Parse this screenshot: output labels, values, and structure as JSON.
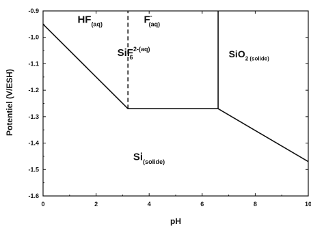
{
  "chart_data": {
    "type": "line",
    "xlabel": "pH",
    "ylabel": "Potentiel (V/ESH)",
    "xlim": [
      0,
      10
    ],
    "ylim": [
      -1.6,
      -0.9
    ],
    "x_ticks": [
      0,
      2,
      4,
      6,
      8,
      10
    ],
    "y_ticks": [
      -1.6,
      -1.5,
      -1.4,
      -1.3,
      -1.2,
      -1.1,
      -1.0,
      -0.9
    ],
    "x_tick_labels": [
      "0",
      "2",
      "4",
      "6",
      "8",
      "10"
    ],
    "y_tick_labels": [
      "-1.6",
      "-1.5",
      "-1.4",
      "-1.3",
      "-1.2",
      "-1.1",
      "-1.0",
      "-0.9"
    ],
    "boundaries": [
      {
        "style": "solid",
        "points": [
          [
            0,
            -0.95
          ],
          [
            3.2,
            -1.27
          ],
          [
            6.6,
            -1.27
          ],
          [
            10,
            -1.47
          ]
        ]
      },
      {
        "style": "solid",
        "points": [
          [
            6.6,
            -1.27
          ],
          [
            6.6,
            -0.9
          ]
        ]
      },
      {
        "style": "dashed",
        "points": [
          [
            3.2,
            -1.27
          ],
          [
            3.2,
            -0.9
          ]
        ]
      }
    ],
    "regions": [
      {
        "main": "HF",
        "sub": "(aq)",
        "sup": "",
        "x": 1.3,
        "y": -0.945,
        "size": 15
      },
      {
        "main": "F",
        "sub": "(aq)",
        "sup": "-",
        "x": 3.8,
        "y": -0.945,
        "size": 15
      },
      {
        "main": "SiF",
        "sub": "6",
        "sup": "2-(aq)",
        "x": 2.8,
        "y": -1.07,
        "size": 15
      },
      {
        "main": "SiO",
        "sub": "2 (solide)",
        "sup": "",
        "x": 7.0,
        "y": -1.075,
        "size": 14
      },
      {
        "main": "Si",
        "sub": "(solide)",
        "sup": "",
        "x": 3.4,
        "y": -1.465,
        "size": 15
      }
    ]
  }
}
